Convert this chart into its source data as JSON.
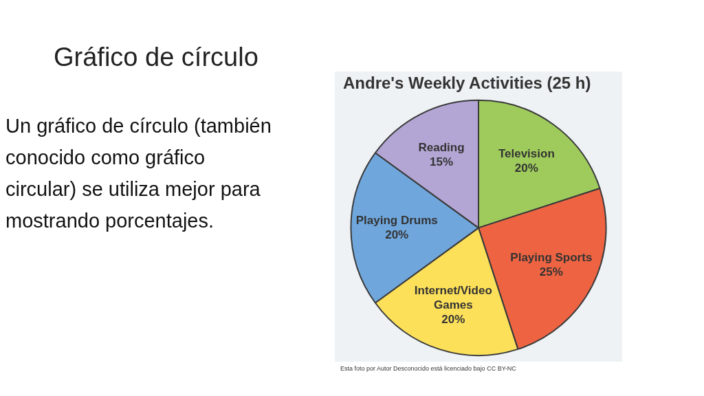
{
  "chart_data": {
    "type": "pie",
    "title": "Gráfico de círculo",
    "subtitle": "Andre's Weekly Activities (25 h)",
    "categories": [
      "Television",
      "Playing Sports",
      "Internet/Video Games",
      "Playing Drums",
      "Reading"
    ],
    "values": [
      20,
      25,
      20,
      20,
      15
    ],
    "value_labels": [
      "20%",
      "25%",
      "20%",
      "20%",
      "15%"
    ],
    "colors": [
      "#9fcb5c",
      "#ee6442",
      "#fde05a",
      "#6fa6dc",
      "#b3a6d4"
    ],
    "legend": false,
    "annotations": [
      "Un gráfico de círculo (también conocido como gráfico circular) se utiliza mejor para mostrando porcentajes.",
      "Esta foto por Autor Desconocido está licenciado bajo CC BY-NC"
    ]
  }
}
